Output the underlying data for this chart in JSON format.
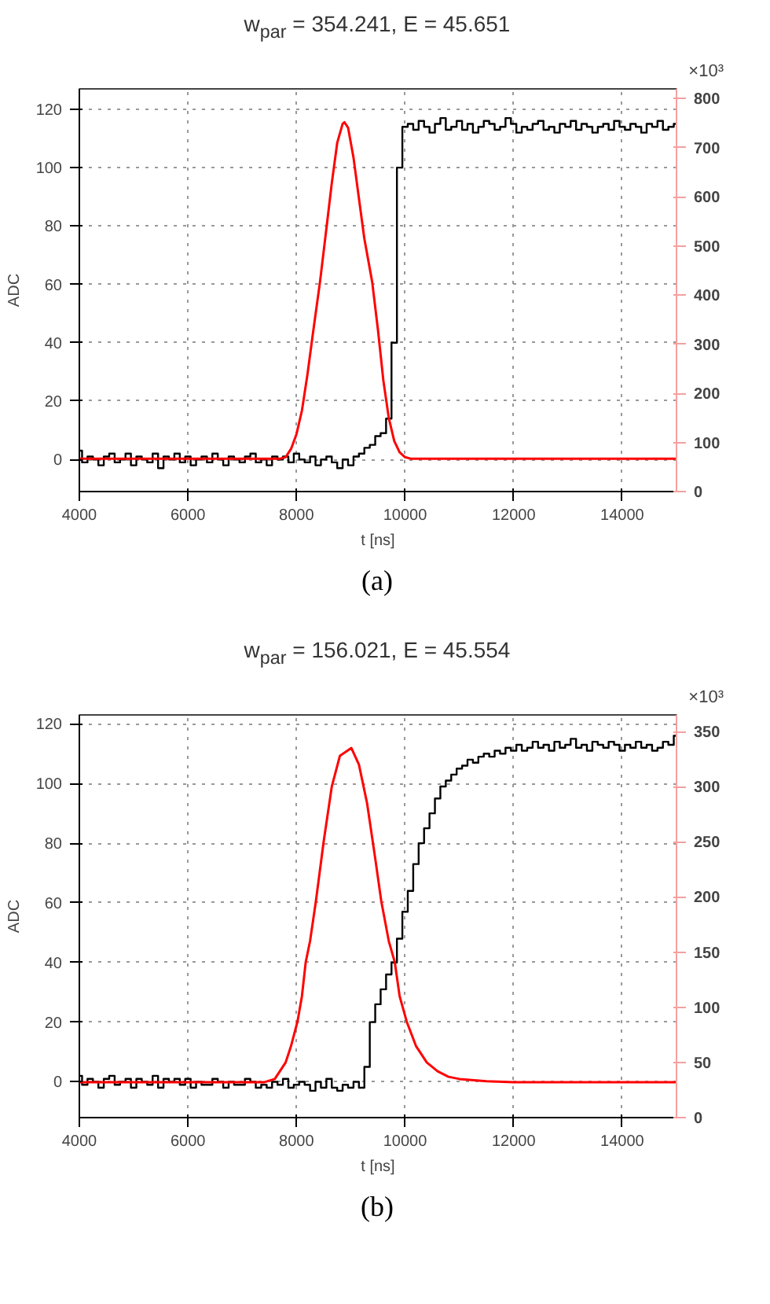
{
  "chart_data": [
    {
      "type": "step",
      "title": "w$_{par}$ = 354.241, E = 45.651",
      "xlabel": "t [ns]",
      "ylabel": "ADC",
      "annotations": [
        "×10³",
        "(a)"
      ],
      "x": [
        4000,
        4100,
        4200,
        4300,
        4400,
        4500,
        4600,
        4700,
        4800,
        4900,
        5000,
        5100,
        5200,
        5300,
        5400,
        5500,
        5600,
        5700,
        5800,
        5900,
        6000,
        6100,
        6200,
        6300,
        6400,
        6500,
        6600,
        6700,
        6800,
        6900,
        7000,
        7100,
        7200,
        7300,
        7400,
        7500,
        7600,
        7700,
        7800,
        7900,
        8000,
        8100,
        8200,
        8300,
        8400,
        8500,
        8600,
        8700,
        8800,
        8900,
        9000,
        9100,
        9200,
        9300,
        9400,
        9500,
        9600,
        9700,
        9800,
        9900,
        10000,
        10100,
        10200,
        10300,
        10400,
        10500,
        10600,
        10700,
        10800,
        10900,
        11000,
        11100,
        11200,
        11300,
        11400,
        11500,
        11600,
        11700,
        11800,
        11900,
        12000,
        12100,
        12200,
        12300,
        12400,
        12500,
        12600,
        12700,
        12800,
        12900,
        13000,
        13100,
        13200,
        13300,
        13400,
        13500,
        13600,
        13700,
        13800,
        13900,
        14000,
        14100,
        14200,
        14300,
        14400,
        14500,
        14600,
        14700,
        14800,
        14900,
        15000
      ],
      "series": [
        {
          "color": "#000000",
          "values": [
            3,
            -1,
            1,
            0,
            -2,
            1,
            2,
            -1,
            0,
            2,
            -2,
            1,
            0,
            -1,
            2,
            -3,
            1,
            0,
            2,
            -1,
            1,
            -2,
            0,
            1,
            -1,
            2,
            0,
            -2,
            1,
            0,
            -1,
            1,
            2,
            -1,
            0,
            -2,
            1,
            0,
            1,
            -1,
            2,
            0,
            -1,
            1,
            -2,
            0,
            1,
            -1,
            -3,
            0,
            -2,
            1,
            2,
            4,
            5,
            8,
            9,
            14,
            40,
            100,
            114,
            115,
            113,
            116,
            114,
            112,
            115,
            117,
            113,
            114,
            116,
            113,
            115,
            112,
            114,
            116,
            115,
            113,
            114,
            117,
            115,
            112,
            114,
            113,
            115,
            116,
            113,
            114,
            112,
            115,
            114,
            116,
            113,
            115,
            114,
            112,
            114,
            115,
            113,
            116,
            114,
            113,
            115,
            114,
            112,
            115,
            114,
            116,
            113,
            114,
            115
          ]
        },
        {
          "type": "line",
          "axis": "y2",
          "color": "#ff0000",
          "x": [
            4000,
            7700,
            7800,
            7900,
            8000,
            8100,
            8200,
            8300,
            8433,
            8550,
            8650,
            8750,
            8850,
            8884,
            8950,
            9050,
            9150,
            9250,
            9394,
            9500,
            9600,
            9700,
            9800,
            9900,
            10000,
            10100,
            15000
          ],
          "values": [
            67,
            67,
            70,
            87,
            117,
            165,
            237,
            320,
            427,
            535,
            628,
            710,
            749,
            752,
            741,
            680,
            597,
            515,
            427,
            330,
            226,
            150,
            103,
            80,
            70,
            67,
            67
          ]
        }
      ],
      "xlim": [
        4000,
        15000
      ],
      "xticks": [
        4000,
        6000,
        8000,
        10000,
        12000,
        14000
      ],
      "ylim": [
        -11,
        127
      ],
      "yticks": [
        0,
        20,
        40,
        60,
        80,
        100,
        120
      ],
      "y2lim": [
        0,
        820
      ],
      "y2ticks": [
        0,
        100,
        200,
        300,
        400,
        500,
        600,
        700,
        800
      ],
      "grid": true
    },
    {
      "type": "step",
      "title": "w$_{par}$ = 156.021, E = 45.554",
      "xlabel": "t [ns]",
      "ylabel": "ADC",
      "annotations": [
        "×10³",
        "(b)"
      ],
      "x": [
        4000,
        4100,
        4200,
        4300,
        4400,
        4500,
        4600,
        4700,
        4800,
        4900,
        5000,
        5100,
        5200,
        5300,
        5400,
        5500,
        5600,
        5700,
        5800,
        5900,
        6000,
        6100,
        6200,
        6300,
        6400,
        6500,
        6600,
        6700,
        6800,
        6900,
        7000,
        7100,
        7200,
        7300,
        7400,
        7500,
        7600,
        7700,
        7800,
        7900,
        8000,
        8100,
        8200,
        8300,
        8400,
        8500,
        8600,
        8700,
        8800,
        8900,
        9000,
        9100,
        9200,
        9300,
        9400,
        9500,
        9600,
        9700,
        9800,
        9900,
        10000,
        10100,
        10200,
        10300,
        10400,
        10500,
        10600,
        10700,
        10800,
        10900,
        11000,
        11100,
        11200,
        11300,
        11400,
        11500,
        11600,
        11700,
        11800,
        11900,
        12000,
        12100,
        12200,
        12300,
        12400,
        12500,
        12600,
        12700,
        12800,
        12900,
        13000,
        13100,
        13200,
        13300,
        13400,
        13500,
        13600,
        13700,
        13800,
        13900,
        14000,
        14100,
        14200,
        14300,
        14400,
        14500,
        14600,
        14700,
        14800,
        14900,
        15000
      ],
      "series": [
        {
          "color": "#000000",
          "values": [
            2,
            -1,
            1,
            0,
            -2,
            1,
            2,
            -1,
            0,
            1,
            -2,
            1,
            0,
            -1,
            2,
            -2,
            1,
            0,
            1,
            -1,
            1,
            -2,
            0,
            -1,
            -1,
            1,
            0,
            -2,
            0,
            -1,
            -1,
            1,
            0,
            -2,
            -1,
            -2,
            0,
            -1,
            1,
            -2,
            -1,
            0,
            -1,
            -3,
            0,
            -2,
            1,
            -2,
            -3,
            -1,
            -2,
            0,
            -2,
            5,
            20,
            26,
            31,
            36,
            40,
            48,
            57,
            64,
            73,
            80,
            85,
            90,
            95,
            99,
            101,
            103,
            105,
            106,
            108,
            107,
            109,
            110,
            109,
            111,
            110,
            112,
            111,
            113,
            111,
            112,
            114,
            112,
            113,
            111,
            114,
            112,
            113,
            115,
            112,
            113,
            111,
            114,
            113,
            112,
            114,
            113,
            111,
            113,
            112,
            114,
            112,
            113,
            111,
            112,
            114,
            113,
            116
          ]
        },
        {
          "type": "line",
          "axis": "y2",
          "color": "#ff0000",
          "x": [
            4000,
            7400,
            7600,
            7800,
            7900,
            8018,
            8100,
            8170,
            8250,
            8357,
            8500,
            8650,
            8800,
            9011,
            9150,
            9300,
            9450,
            9562,
            9700,
            9810,
            9900,
            10030,
            10200,
            10400,
            10600,
            10800,
            11000,
            11500,
            12000,
            15000
          ],
          "values": [
            32,
            32,
            35,
            50,
            65,
            87,
            110,
            141,
            160,
            196,
            250,
            300,
            328,
            335,
            320,
            285,
            235,
            196,
            160,
            141,
            110,
            87,
            65,
            50,
            42,
            37,
            35,
            33,
            32,
            32
          ]
        }
      ],
      "xlim": [
        4000,
        15000
      ],
      "xticks": [
        4000,
        6000,
        8000,
        10000,
        12000,
        14000
      ],
      "ylim": [
        -12,
        123
      ],
      "yticks": [
        0,
        20,
        40,
        60,
        80,
        100,
        120
      ],
      "y2lim": [
        0,
        365
      ],
      "y2ticks": [
        0,
        50,
        100,
        150,
        200,
        250,
        300,
        350
      ],
      "grid": true
    }
  ]
}
